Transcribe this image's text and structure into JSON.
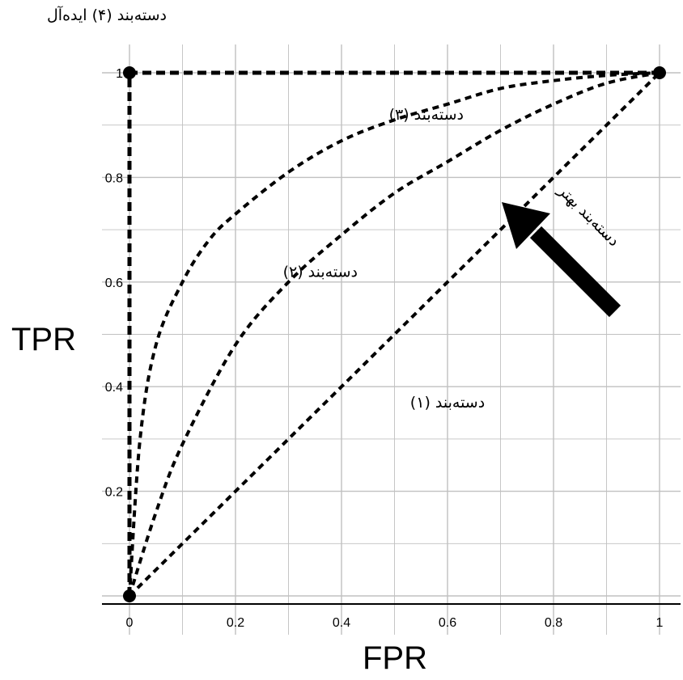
{
  "chart_data": {
    "type": "line",
    "xlabel": "FPR",
    "ylabel": "TPR",
    "xlim": [
      0,
      1
    ],
    "ylim": [
      0,
      1
    ],
    "x_ticks": [
      "0",
      "0.2",
      "0.4",
      "0.6",
      "0.8",
      "1"
    ],
    "y_ticks": [
      "0.2",
      "0.4",
      "0.6",
      "0.8",
      "1"
    ],
    "grid": true,
    "series": [
      {
        "name": "دسته‌بند (۱)",
        "x": [
          0,
          0.2,
          0.4,
          0.6,
          0.8,
          1
        ],
        "y": [
          0,
          0.2,
          0.4,
          0.6,
          0.8,
          1
        ]
      },
      {
        "name": "دسته‌بند (۲)",
        "x": [
          0,
          0.05,
          0.1,
          0.2,
          0.3,
          0.4,
          0.5,
          0.6,
          0.7,
          0.8,
          0.9,
          1
        ],
        "y": [
          0,
          0.16,
          0.29,
          0.48,
          0.6,
          0.69,
          0.77,
          0.83,
          0.89,
          0.94,
          0.98,
          1
        ]
      },
      {
        "name": "دسته‌بند (۳)",
        "x": [
          0,
          0.02,
          0.05,
          0.1,
          0.15,
          0.2,
          0.3,
          0.4,
          0.5,
          0.6,
          0.7,
          0.8,
          0.9,
          1
        ],
        "y": [
          0,
          0.3,
          0.48,
          0.6,
          0.68,
          0.73,
          0.81,
          0.87,
          0.91,
          0.94,
          0.97,
          0.985,
          0.995,
          1
        ]
      },
      {
        "name": "دسته‌بند (۴) ایده‌آل",
        "x": [
          0,
          0,
          1
        ],
        "y": [
          0,
          1,
          1
        ]
      }
    ],
    "annotations": [
      {
        "text": "دسته‌بند (۱)",
        "x": 0.6,
        "y": 0.36
      },
      {
        "text": "دسته‌بند (۲)",
        "x": 0.36,
        "y": 0.61
      },
      {
        "text": "دسته‌بند (۳)",
        "x": 0.56,
        "y": 0.91
      },
      {
        "text": "دسته‌بند بهتر",
        "x": 0.86,
        "y": 0.72,
        "rotate": 45
      }
    ],
    "ideal_label": "دسته‌بند (۴) ایده‌آل"
  },
  "colors": {
    "line": "#000000",
    "grid": "#c0c0c0",
    "axis": "#000000",
    "background": "#ffffff"
  }
}
